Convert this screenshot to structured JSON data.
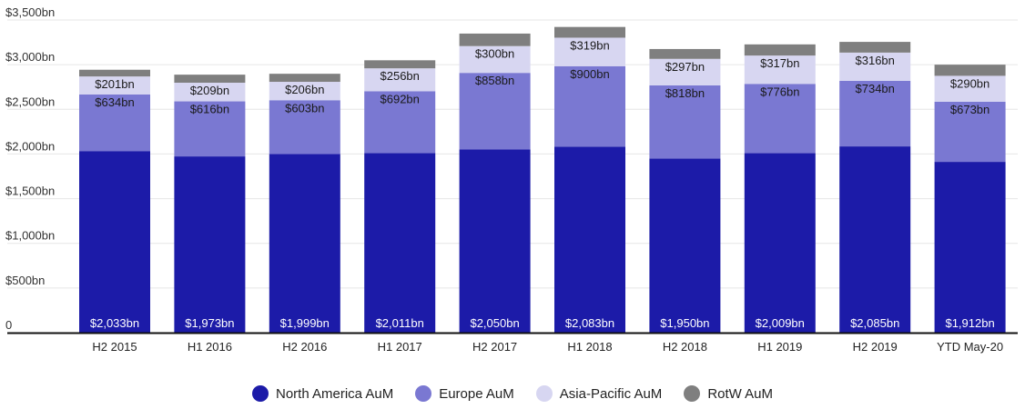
{
  "chart_data": {
    "type": "bar",
    "stacked": true,
    "title": "",
    "xlabel": "",
    "ylabel": "",
    "ylim": [
      0,
      3500
    ],
    "yticks": [
      {
        "value": 0,
        "label": "0"
      },
      {
        "value": 500,
        "label": "$500bn"
      },
      {
        "value": 1000,
        "label": "$1,000bn"
      },
      {
        "value": 1500,
        "label": "$1,500bn"
      },
      {
        "value": 2000,
        "label": "$2,000bn"
      },
      {
        "value": 2500,
        "label": "$2,500bn"
      },
      {
        "value": 3000,
        "label": "$3,000bn"
      },
      {
        "value": 3500,
        "label": "$3,500bn"
      }
    ],
    "categories": [
      "H2 2015",
      "H1 2016",
      "H2 2016",
      "H1 2017",
      "H2 2017",
      "H1 2018",
      "H2 2018",
      "H1 2019",
      "H2 2019",
      "YTD May-20"
    ],
    "series": [
      {
        "name": "North America AuM",
        "color": "#1c1ba8",
        "label_color": "#ffffff",
        "values": [
          2033,
          1973,
          1999,
          2011,
          2050,
          2083,
          1950,
          2009,
          2085,
          1912
        ],
        "labels": [
          "$2,033bn",
          "$1,973bn",
          "$1,999bn",
          "$2,011bn",
          "$2,050bn",
          "$2,083bn",
          "$1,950bn",
          "$2,009bn",
          "$2,085bn",
          "$1,912bn"
        ]
      },
      {
        "name": "Europe AuM",
        "color": "#7a78d2",
        "label_color": "#1a1a1a",
        "values": [
          634,
          616,
          603,
          692,
          858,
          900,
          818,
          776,
          734,
          673
        ],
        "labels": [
          "$634bn",
          "$616bn",
          "$603bn",
          "$692bn",
          "$858bn",
          "$900bn",
          "$818bn",
          "$776bn",
          "$734bn",
          "$673bn"
        ]
      },
      {
        "name": "Asia-Pacific AuM",
        "color": "#d7d6f1",
        "label_color": "#1a1a1a",
        "values": [
          201,
          209,
          206,
          256,
          300,
          319,
          297,
          317,
          316,
          290
        ],
        "labels": [
          "$201bn",
          "$209bn",
          "$206bn",
          "$256bn",
          "$300bn",
          "$319bn",
          "$297bn",
          "$317bn",
          "$316bn",
          "$290bn"
        ]
      },
      {
        "name": "RotW AuM",
        "color": "#7f7f7f",
        "label_color": "#1a1a1a",
        "values": [
          75,
          90,
          90,
          90,
          140,
          120,
          110,
          125,
          120,
          125
        ],
        "labels": []
      }
    ],
    "legend_position": "bottom-center"
  }
}
